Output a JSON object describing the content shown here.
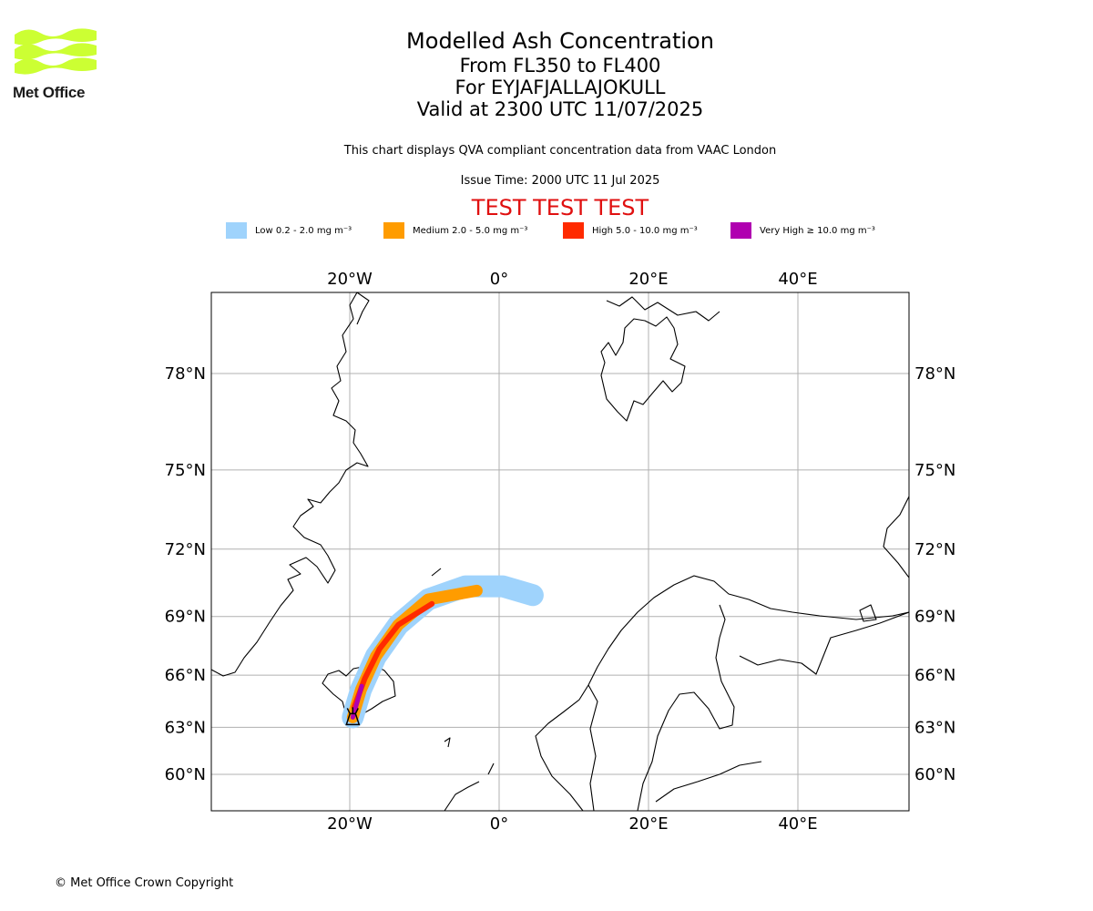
{
  "logo": {
    "text": "Met Office",
    "color": "#ccff33"
  },
  "title": {
    "line1": "Modelled Ash Concentration",
    "line2": "From FL350 to FL400",
    "line3": "For EYJAFJALLAJOKULL",
    "line4": "Valid at 2300 UTC 11/07/2025"
  },
  "subtitle": "This chart displays QVA compliant concentration data from VAAC London",
  "issue_time": "Issue Time: 2000 UTC 11 Jul 2025",
  "test_banner": "TEST TEST TEST",
  "legend": [
    {
      "label": "Low 0.2 - 2.0 mg m⁻³",
      "color": "#9fd3fc"
    },
    {
      "label": "Medium 2.0 - 5.0 mg m⁻³",
      "color": "#ff9c00"
    },
    {
      "label": "High 5.0 - 10.0 mg m⁻³",
      "color": "#ff2a00"
    },
    {
      "label": "Very High ≥ 10.0 mg m⁻³",
      "color": "#b000b0"
    }
  ],
  "map": {
    "lon_ticks": [
      {
        "lon": -20,
        "label": "20°W"
      },
      {
        "lon": 0,
        "label": "0°"
      },
      {
        "lon": 20,
        "label": "20°E"
      },
      {
        "lon": 40,
        "label": "40°E"
      }
    ],
    "lat_ticks": [
      {
        "lat": 78,
        "label": "78°N"
      },
      {
        "lat": 75,
        "label": "75°N"
      },
      {
        "lat": 72,
        "label": "72°N"
      },
      {
        "lat": 69,
        "label": "69°N"
      },
      {
        "lat": 66,
        "label": "66°N"
      },
      {
        "lat": 63,
        "label": "63°N"
      },
      {
        "lat": 60,
        "label": "60°N"
      }
    ],
    "volcano": {
      "name": "EYJAFJALLAJOKULL",
      "lon": -19.6,
      "lat": 63.6
    },
    "ash": {
      "low_centerline": [
        [
          -19.6,
          63.6
        ],
        [
          -18.5,
          65.2
        ],
        [
          -16.5,
          67.0
        ],
        [
          -13.5,
          68.6
        ],
        [
          -9.5,
          69.8
        ],
        [
          -4.5,
          70.4
        ],
        [
          0.5,
          70.4
        ],
        [
          4.5,
          70.0
        ]
      ],
      "medium_centerline": [
        [
          -19.6,
          63.6
        ],
        [
          -18.5,
          65.2
        ],
        [
          -16.5,
          67.0
        ],
        [
          -13.5,
          68.6
        ],
        [
          -9.5,
          69.8
        ],
        [
          -3.0,
          70.2
        ]
      ],
      "high_centerline": [
        [
          -19.4,
          64.2
        ],
        [
          -18.0,
          65.8
        ],
        [
          -16.0,
          67.4
        ],
        [
          -13.5,
          68.6
        ],
        [
          -9.0,
          69.6
        ]
      ],
      "very_high_centerline": [
        [
          -19.6,
          63.6
        ],
        [
          -19.0,
          64.5
        ],
        [
          -18.4,
          65.4
        ]
      ]
    }
  },
  "copyright": "© Met Office Crown Copyright"
}
